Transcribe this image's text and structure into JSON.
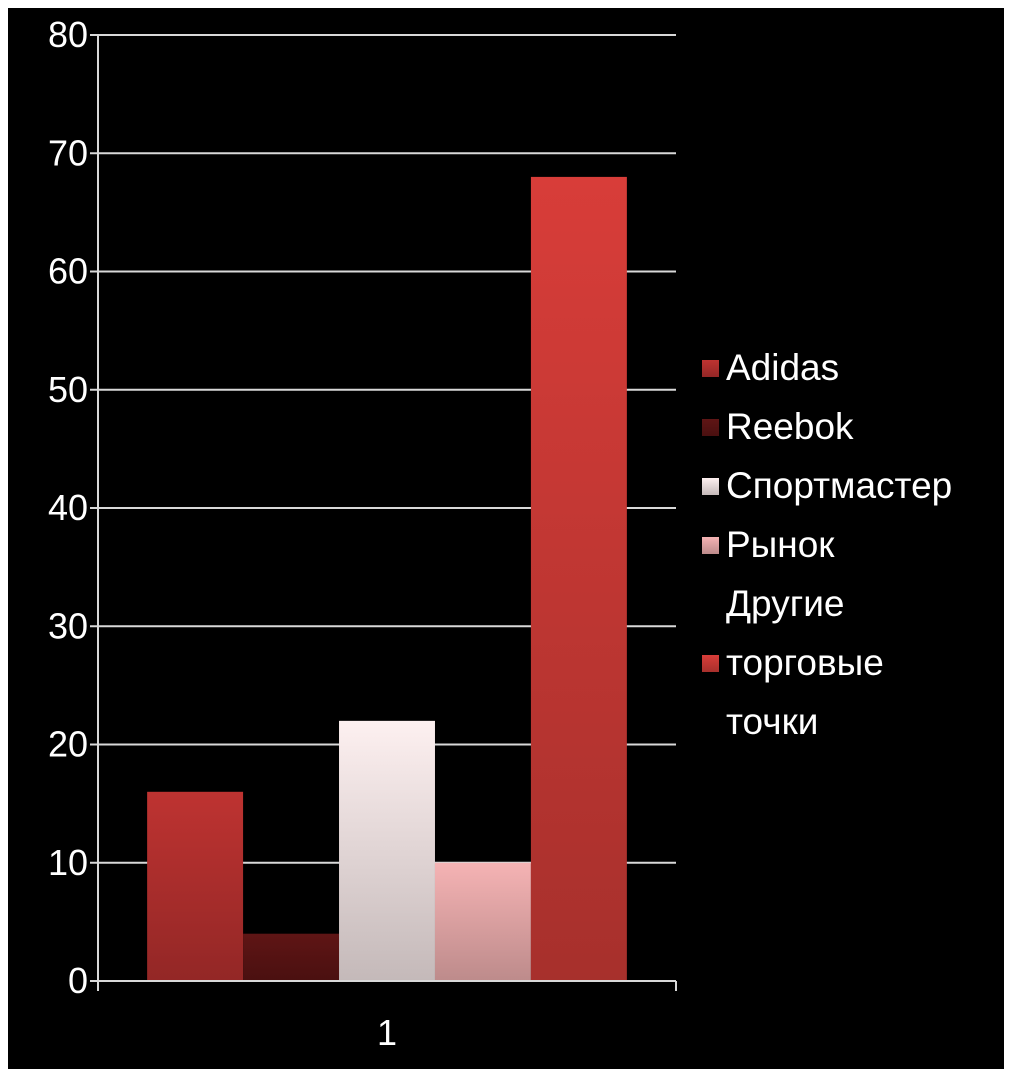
{
  "chart_data": {
    "type": "bar",
    "categories": [
      "1"
    ],
    "series": [
      {
        "name": "Adidas",
        "values": [
          16
        ],
        "color": "#b3302e"
      },
      {
        "name": "Reebok",
        "values": [
          4
        ],
        "color": "#5a1414"
      },
      {
        "name": "Спортмастер",
        "values": [
          22
        ],
        "color": "#efe2e2"
      },
      {
        "name": "Рынок",
        "values": [
          10
        ],
        "color": "#e7a9aa"
      },
      {
        "name": "Другие торговые точки",
        "values": [
          68
        ],
        "color": "#cc3a36"
      }
    ],
    "legend_lines": [
      [
        "Adidas"
      ],
      [
        "Reebok"
      ],
      [
        "Спортмастер"
      ],
      [
        "Рынок"
      ],
      [
        "Другие",
        "торговые",
        "точки"
      ]
    ],
    "y_ticks": [
      0,
      10,
      20,
      30,
      40,
      50,
      60,
      70,
      80
    ],
    "ylim": [
      0,
      80
    ],
    "grid": true,
    "legend_position": "right",
    "background": "#000000",
    "title": "",
    "xlabel": "",
    "ylabel": ""
  }
}
